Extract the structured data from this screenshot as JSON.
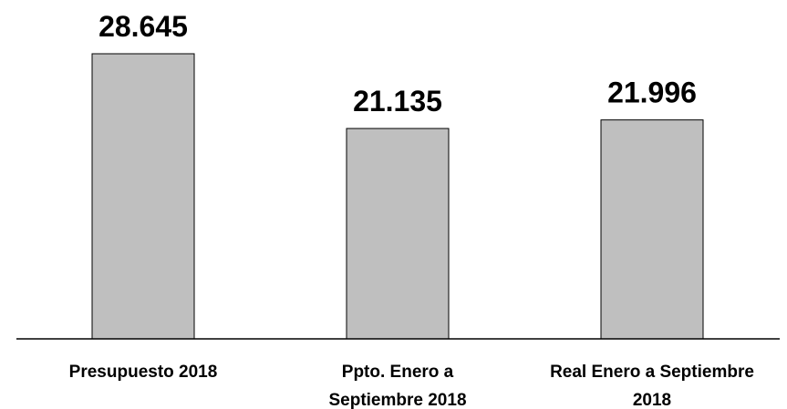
{
  "chart_data": {
    "type": "bar",
    "categories": [
      [
        "Presupuesto 2018"
      ],
      [
        "Ppto. Enero a",
        "Septiembre 2018"
      ],
      [
        "Real Enero a Septiembre",
        "2018"
      ]
    ],
    "values": [
      28645,
      21135,
      21996
    ],
    "data_labels": [
      "28.645",
      "21.135",
      "21.996"
    ],
    "title": "",
    "xlabel": "",
    "ylabel": "",
    "ylim": [
      0,
      28645
    ],
    "grid": false,
    "legend": "none",
    "colors": {
      "bar_fill": "#bfbfbf",
      "bar_stroke": "#000000",
      "axis": "#000000",
      "text": "#000000"
    }
  }
}
